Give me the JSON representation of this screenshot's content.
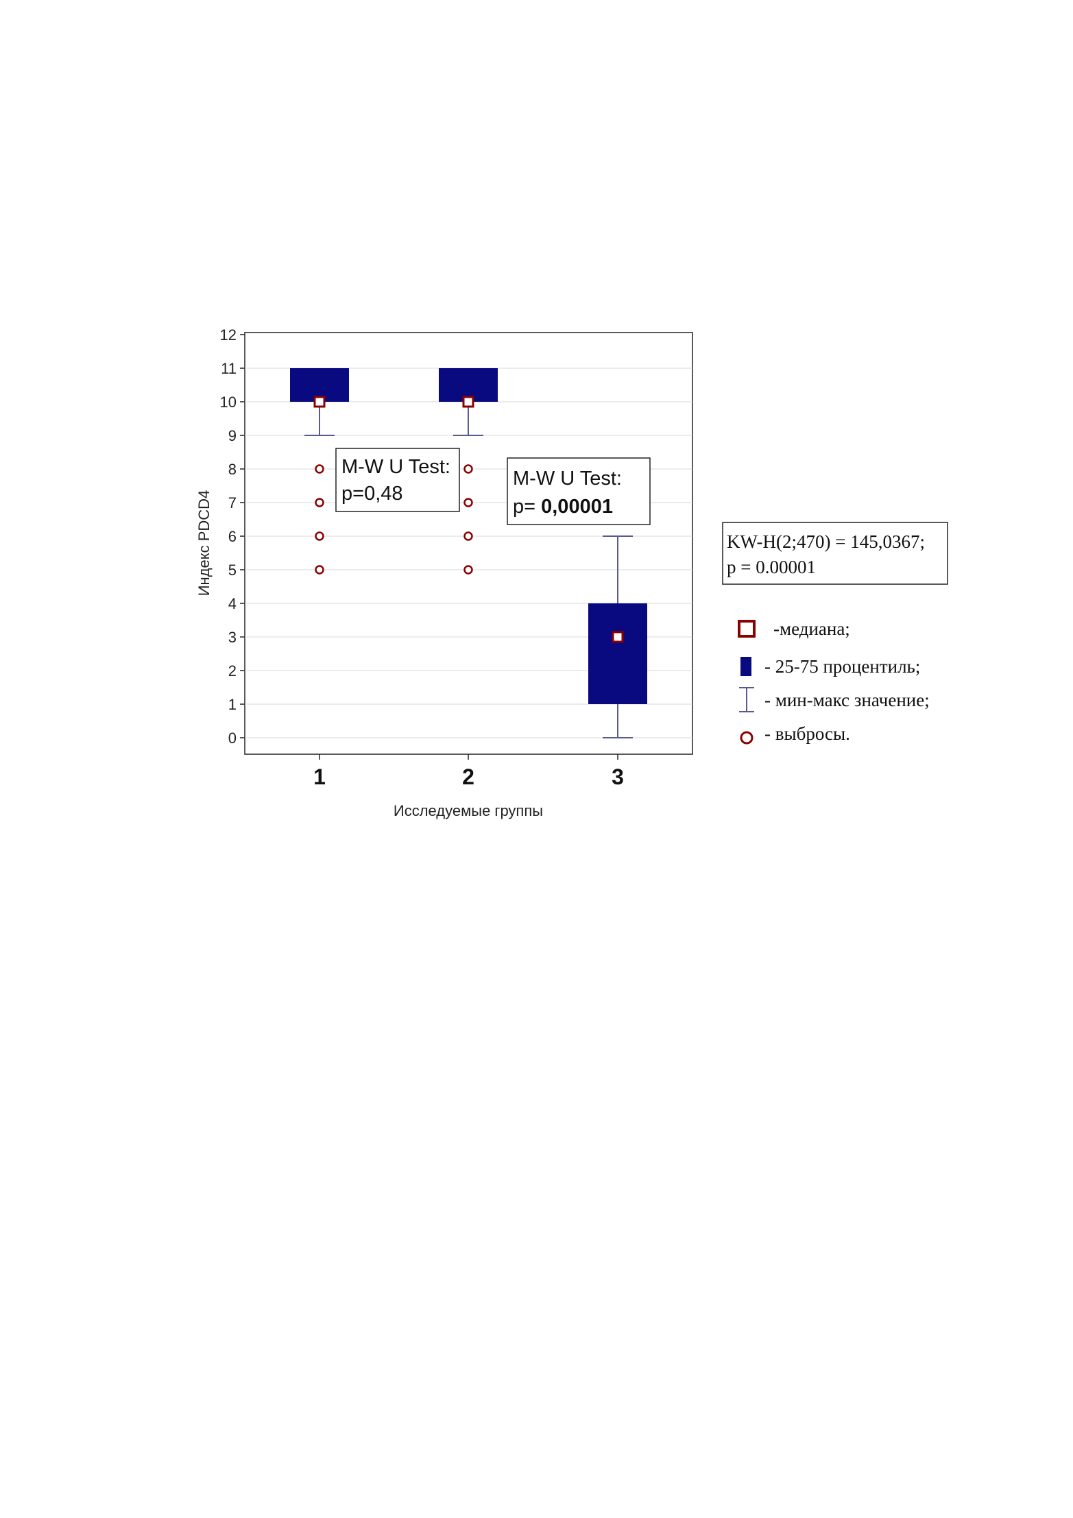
{
  "chart_data": {
    "type": "boxplot",
    "xlabel": "Исследуемые группы",
    "ylabel": "Индекс PDCD4",
    "ylim": [
      0,
      12
    ],
    "yticks": [
      "0",
      "1",
      "2",
      "3",
      "4",
      "5",
      "6",
      "7",
      "8",
      "9",
      "10",
      "11",
      "12"
    ],
    "grid": true,
    "categories": [
      "1",
      "2",
      "3"
    ],
    "groups": [
      {
        "category": "1",
        "min": 9,
        "q1": 10,
        "median": 10,
        "q3": 11,
        "max": 11,
        "outliers": [
          8,
          7,
          6,
          5
        ]
      },
      {
        "category": "2",
        "min": 9,
        "q1": 10,
        "median": 10,
        "q3": 11,
        "max": 11,
        "outliers": [
          8,
          7,
          6,
          5
        ]
      },
      {
        "category": "3",
        "min": 0,
        "q1": 1,
        "median": 3,
        "q3": 4,
        "max": 6,
        "outliers": []
      }
    ],
    "annotations": [
      {
        "line1": "M-W U Test:",
        "line2_prefix": "p=0,48",
        "line2_bold": ""
      },
      {
        "line1": "M-W U Test:",
        "line2_prefix": "p= ",
        "line2_bold": "0,00001"
      }
    ],
    "kw_test": {
      "line1": "KW-H(2;470) = 145,0367;",
      "line2": "p = 0.00001"
    },
    "legend": [
      {
        "symbol": "median",
        "label": "-медиана;"
      },
      {
        "symbol": "box",
        "label": "- 25-75 процентиль;"
      },
      {
        "symbol": "whisker",
        "label": "- мин-макс значение;"
      },
      {
        "symbol": "outlier",
        "label": "- выбросы."
      }
    ],
    "colors": {
      "box": "#0a0a80",
      "median": "#8b0000",
      "outlier": "#8b0000",
      "whisker": "#5a5a90",
      "grid": "#d9d9d9"
    }
  }
}
